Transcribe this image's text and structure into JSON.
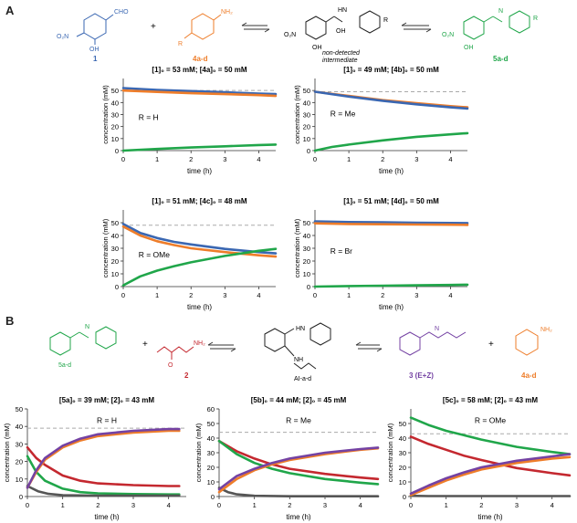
{
  "panels": {
    "a": "A",
    "b": "B"
  },
  "scheme_a": {
    "cmpd1": "1",
    "cmpd4": "4a-d",
    "cmpd5": "5a-d",
    "nd1": "non-detected",
    "nd2": "intermediate",
    "sub_cho": "CHO",
    "sub_no2": "O₂N",
    "sub_oh": "OH",
    "sub_nh2": "NH₂",
    "sub_r": "R",
    "sub_hn": "HN",
    "sub_n": "N"
  },
  "scheme_b": {
    "cmpd5": "5a-d",
    "cmpd2": "2",
    "cmpdAI": "AI-a-d",
    "cmpd3": "3 (E+Z)",
    "cmpd4": "4a-d",
    "sub_nh2": "NH₂",
    "sub_nh": "NH",
    "sub_n": "N",
    "sub_o": "O",
    "sub_hn": "HN"
  },
  "colors": {
    "blue": "#3a67b2",
    "orange": "#ee7d2a",
    "green": "#20a64a",
    "red": "#c4282f",
    "purple": "#7442a3",
    "grey": "#555555",
    "dash": "#aaaaaa"
  },
  "chart_data": [
    {
      "type": "line",
      "header": "[1]₀ = 53 mM; [4a]₀ = 50 mM",
      "annotation": "R = H",
      "xlabel": "time (h)",
      "ylabel": "concentration (mM)",
      "xlim": [
        0,
        4.5
      ],
      "ylim": [
        0,
        60
      ],
      "xticks": [
        0,
        1,
        2,
        3,
        4
      ],
      "yticks": [
        0,
        10,
        20,
        30,
        40,
        50
      ],
      "ref": 50,
      "series": [
        {
          "color": "blue",
          "x": [
            0,
            1,
            2,
            3,
            4,
            4.5
          ],
          "y": [
            52,
            50.5,
            49.5,
            48.5,
            47.5,
            47
          ]
        },
        {
          "color": "orange",
          "x": [
            0,
            1,
            2,
            3,
            4,
            4.5
          ],
          "y": [
            50,
            48.8,
            47.8,
            47,
            46.2,
            45.5
          ]
        },
        {
          "color": "green",
          "x": [
            0,
            1,
            2,
            3,
            4,
            4.5
          ],
          "y": [
            0,
            1.4,
            2.6,
            3.6,
            4.6,
            5
          ]
        }
      ]
    },
    {
      "type": "line",
      "header": "[1]₀ = 49 mM; [4b]₀ = 50 mM",
      "annotation": "R = Me",
      "xlabel": "time (h)",
      "ylabel": "concentration (mM)",
      "xlim": [
        0,
        4.5
      ],
      "ylim": [
        0,
        60
      ],
      "xticks": [
        0,
        1,
        2,
        3,
        4
      ],
      "yticks": [
        0,
        10,
        20,
        30,
        40,
        50
      ],
      "ref": 49,
      "series": [
        {
          "color": "orange",
          "x": [
            0,
            1,
            2,
            3,
            4,
            4.5
          ],
          "y": [
            49,
            45.5,
            42,
            39.5,
            37,
            36
          ]
        },
        {
          "color": "blue",
          "x": [
            0,
            1,
            2,
            3,
            4,
            4.5
          ],
          "y": [
            49,
            45,
            41.5,
            38.5,
            36,
            35
          ]
        },
        {
          "color": "green",
          "x": [
            0,
            0.5,
            1,
            2,
            3,
            4,
            4.5
          ],
          "y": [
            0,
            3,
            5,
            8.5,
            11.5,
            13.5,
            14.5
          ]
        }
      ]
    },
    {
      "type": "line",
      "header": "[1]₀ = 51 mM; [4c]₀ = 48 mM",
      "annotation": "R = OMe",
      "xlabel": "time (h)",
      "ylabel": "concentration (mM)",
      "xlim": [
        0,
        4.5
      ],
      "ylim": [
        0,
        60
      ],
      "xticks": [
        0,
        1,
        2,
        3,
        4
      ],
      "yticks": [
        0,
        10,
        20,
        30,
        40,
        50
      ],
      "ref": 48,
      "series": [
        {
          "color": "blue",
          "x": [
            0,
            0.5,
            1,
            1.5,
            2,
            3,
            4,
            4.5
          ],
          "y": [
            49,
            42,
            38,
            35,
            33,
            29.5,
            27,
            26
          ]
        },
        {
          "color": "orange",
          "x": [
            0,
            0.5,
            1,
            1.5,
            2,
            3,
            4,
            4.5
          ],
          "y": [
            47,
            40,
            35.5,
            32.5,
            30,
            27,
            24.5,
            23.5
          ]
        },
        {
          "color": "green",
          "x": [
            0,
            0.5,
            1,
            1.5,
            2,
            3,
            4,
            4.5
          ],
          "y": [
            1,
            8,
            12.5,
            16,
            19,
            24,
            28,
            29.5
          ]
        }
      ]
    },
    {
      "type": "line",
      "header": "[1]₀ = 51 mM; [4d]₀ = 50 mM",
      "annotation": "R = Br",
      "xlabel": "time (h)",
      "ylabel": "concentration (mM)",
      "xlim": [
        0,
        4.5
      ],
      "ylim": [
        0,
        60
      ],
      "xticks": [
        0,
        1,
        2,
        3,
        4
      ],
      "yticks": [
        0,
        10,
        20,
        30,
        40,
        50
      ],
      "ref": 50,
      "series": [
        {
          "color": "blue",
          "x": [
            0,
            1,
            2,
            3,
            4,
            4.5
          ],
          "y": [
            51,
            50.5,
            50.3,
            50,
            49.8,
            49.7
          ]
        },
        {
          "color": "orange",
          "x": [
            0,
            1,
            2,
            3,
            4,
            4.5
          ],
          "y": [
            49.5,
            49,
            48.8,
            48.6,
            48.4,
            48.3
          ]
        },
        {
          "color": "green",
          "x": [
            0,
            1,
            2,
            3,
            4,
            4.5
          ],
          "y": [
            0,
            0.4,
            0.7,
            1,
            1.3,
            1.5
          ]
        }
      ]
    },
    {
      "type": "line",
      "header": "[5a]₀ = 39 mM; [2]₀ = 43 mM",
      "annotation": "R = H",
      "xlabel": "time (h)",
      "ylabel": "concentration (mM)",
      "xlim": [
        0,
        4.5
      ],
      "ylim": [
        0,
        50
      ],
      "xticks": [
        0,
        1,
        2,
        3,
        4
      ],
      "yticks": [
        0,
        10,
        20,
        30,
        40,
        50
      ],
      "ref": 39,
      "series": [
        {
          "color": "red",
          "x": [
            0,
            0.25,
            0.5,
            1,
            1.5,
            2,
            3,
            4,
            4.3
          ],
          "y": [
            28,
            22,
            18,
            12,
            9,
            7.5,
            6.5,
            6,
            6
          ]
        },
        {
          "color": "green",
          "x": [
            0,
            0.25,
            0.5,
            1,
            1.5,
            2,
            3,
            4,
            4.3
          ],
          "y": [
            23,
            14,
            9,
            4.5,
            2.5,
            1.8,
            1.4,
            1.2,
            1.2
          ]
        },
        {
          "color": "grey",
          "x": [
            0,
            0.3,
            0.6,
            1,
            2,
            3,
            4.3
          ],
          "y": [
            6,
            3,
            1.5,
            0.8,
            0.5,
            0.5,
            0.5
          ]
        },
        {
          "color": "orange",
          "x": [
            0,
            0.25,
            0.5,
            1,
            1.5,
            2,
            3,
            4,
            4.3
          ],
          "y": [
            5,
            14,
            21,
            28,
            32,
            34.5,
            36.5,
            37.5,
            37.5
          ]
        },
        {
          "color": "purple",
          "x": [
            0,
            0.25,
            0.5,
            1,
            1.5,
            2,
            3,
            4,
            4.3
          ],
          "y": [
            5,
            15,
            22,
            29,
            33,
            35.5,
            37.5,
            38.5,
            38.5
          ]
        }
      ]
    },
    {
      "type": "line",
      "header": "[5b]₀ = 44 mM; [2]₀ = 45 mM",
      "annotation": "R = Me",
      "xlabel": "time (h)",
      "ylabel": "concentration (mM)",
      "xlim": [
        0,
        4.5
      ],
      "ylim": [
        0,
        60
      ],
      "xticks": [
        0,
        1,
        2,
        3,
        4
      ],
      "yticks": [
        0,
        10,
        20,
        30,
        40,
        50,
        60
      ],
      "ref": 44,
      "series": [
        {
          "color": "red",
          "x": [
            0,
            0.5,
            1,
            1.5,
            2,
            3,
            4,
            4.5
          ],
          "y": [
            38,
            31,
            26,
            22,
            19,
            15.5,
            13,
            12
          ]
        },
        {
          "color": "green",
          "x": [
            0,
            0.5,
            1,
            1.5,
            2,
            3,
            4,
            4.5
          ],
          "y": [
            38,
            29,
            23,
            19,
            16,
            12,
            9.5,
            8.5
          ]
        },
        {
          "color": "grey",
          "x": [
            0,
            0.25,
            0.5,
            1,
            2,
            3,
            4.5
          ],
          "y": [
            6,
            3,
            1.5,
            0.5,
            0.2,
            0.2,
            0.2
          ]
        },
        {
          "color": "orange",
          "x": [
            0,
            0.5,
            1,
            1.5,
            2,
            3,
            4,
            4.5
          ],
          "y": [
            3,
            12,
            18,
            22,
            25,
            29,
            32,
            33
          ]
        },
        {
          "color": "purple",
          "x": [
            0,
            0.5,
            1,
            1.5,
            2,
            3,
            4,
            4.5
          ],
          "y": [
            5,
            14,
            19,
            23,
            26,
            30,
            32.5,
            33.5
          ]
        }
      ]
    },
    {
      "type": "line",
      "header": "[5c]₀ = 58 mM; [2]₀ = 43 mM",
      "annotation": "R = OMe",
      "xlabel": "time (h)",
      "ylabel": "concentration (mM)",
      "xlim": [
        0,
        4.5
      ],
      "ylim": [
        0,
        60
      ],
      "xticks": [
        0,
        1,
        2,
        3,
        4
      ],
      "yticks": [
        0,
        10,
        20,
        30,
        40,
        50
      ],
      "ref": 43,
      "series": [
        {
          "color": "green",
          "x": [
            0,
            0.5,
            1,
            1.5,
            2,
            3,
            4,
            4.5
          ],
          "y": [
            54,
            49,
            45,
            42,
            39,
            34,
            30.5,
            29
          ]
        },
        {
          "color": "red",
          "x": [
            0,
            0.5,
            1,
            1.5,
            2,
            3,
            4,
            4.5
          ],
          "y": [
            41,
            36,
            32,
            28,
            25,
            19.5,
            16,
            14.5
          ]
        },
        {
          "color": "grey",
          "x": [
            0,
            0.5,
            1,
            2,
            3,
            4.5
          ],
          "y": [
            0.5,
            0.3,
            0.3,
            0.3,
            0.3,
            0.3
          ]
        },
        {
          "color": "orange",
          "x": [
            0,
            0.5,
            1,
            1.5,
            2,
            3,
            4,
            4.5
          ],
          "y": [
            1,
            6,
            11,
            15,
            18.5,
            23,
            26,
            27
          ]
        },
        {
          "color": "purple",
          "x": [
            0,
            0.5,
            1,
            1.5,
            2,
            3,
            4,
            4.5
          ],
          "y": [
            2,
            7.5,
            12.5,
            16.5,
            20,
            24.5,
            27.5,
            29
          ]
        }
      ]
    }
  ]
}
